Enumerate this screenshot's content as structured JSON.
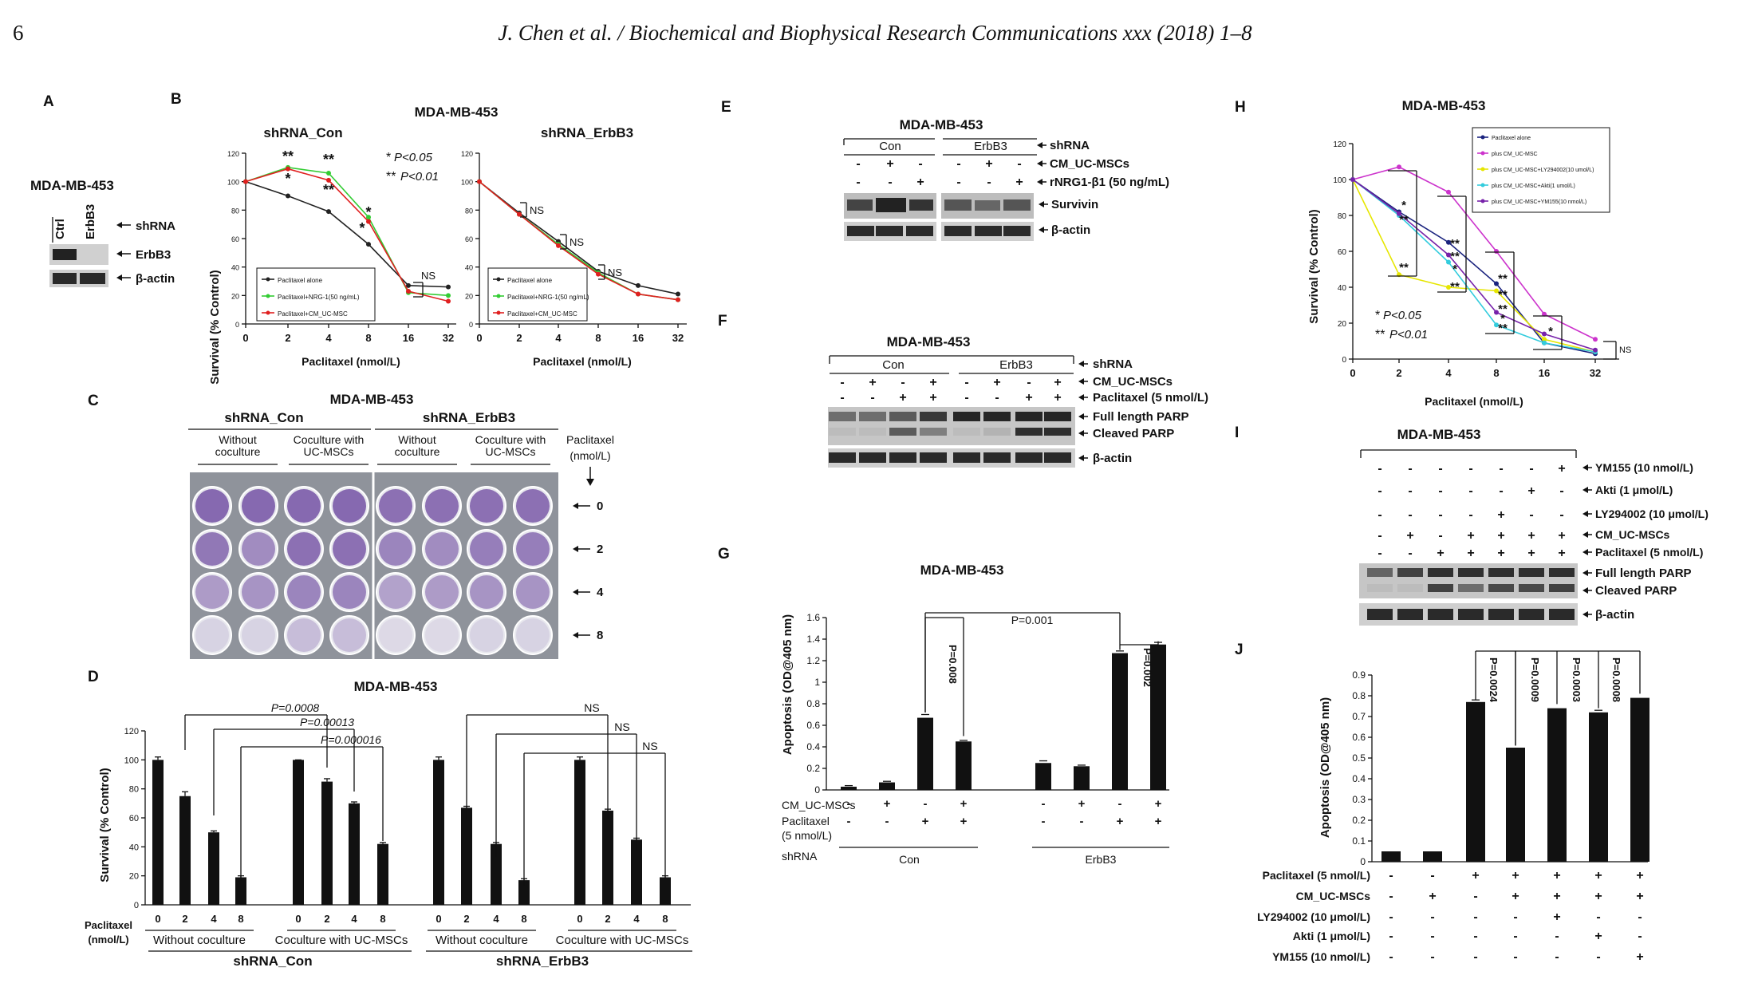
{
  "header": {
    "page_number": "6",
    "journal": "J. Chen et al. / Biochemical and Biophysical Research Communications xxx (2018) 1–8"
  },
  "colors": {
    "plate_bg": "#8f939b",
    "well": "#7b5ba8",
    "well_light": "#c9c5d6",
    "blot_dark": "#1f1f1f"
  },
  "panels": {
    "A": {
      "label": "A",
      "cell": "MDA-MB-453",
      "lanes": [
        "Ctrl",
        "ErbB3"
      ],
      "rows": [
        "shRNA",
        "ErbB3",
        "β-actin"
      ]
    },
    "B": {
      "label": "B",
      "cell": "MDA-MB-453",
      "ylabel": "Survival (% Control)",
      "xlabel": "Paclitaxel (nmol/L)",
      "sig1": "P<0.05",
      "sig2": "P<0.01",
      "titles": [
        "shRNA_Con",
        "shRNA_ErbB3"
      ],
      "legend": [
        "Paclitaxel alone",
        "Paclitaxel+NRG-1(50 ng/mL)",
        "Paclitaxel+CM_UC-MSC"
      ],
      "ns": "NS"
    },
    "C": {
      "label": "C",
      "cell": "MDA-MB-453",
      "groups": [
        "shRNA_Con",
        "shRNA_ErbB3"
      ],
      "sub": [
        "Without coculture",
        "Coculture with UC-MSCs",
        "Without coculture",
        "Coculture with UC-MSCs"
      ],
      "pac_label": "Paclitaxel (nmol/L)",
      "doses": [
        "0",
        "2",
        "4",
        "8"
      ]
    },
    "D": {
      "label": "D",
      "cell": "MDA-MB-453",
      "ylabel": "Survival (% Control)",
      "pac_label": "Paclitaxel (nmol/L)",
      "groups": [
        "Without coculture",
        "Coculture with UC-MSCs",
        "Without coculture",
        "Coculture with UC-MSCs"
      ],
      "shrna": [
        "shRNA_Con",
        "shRNA_ErbB3"
      ],
      "pvals": [
        "P=0.0008",
        "P=0.00013",
        "P=0.000016"
      ],
      "ns": "NS"
    },
    "E": {
      "label": "E",
      "cell": "MDA-MB-453",
      "groups": [
        "Con",
        "ErbB3"
      ],
      "rows": [
        "shRNA",
        "CM_UC-MSCs",
        "rNRG1-β1 (50 ng/mL)"
      ],
      "bands": [
        "Survivin",
        "β-actin"
      ],
      "cm": [
        "-",
        "+",
        "-",
        "-",
        "+",
        "-"
      ],
      "nrg": [
        "-",
        "-",
        "+",
        "-",
        "-",
        "+"
      ]
    },
    "F": {
      "label": "F",
      "cell": "MDA-MB-453",
      "groups": [
        "Con",
        "ErbB3"
      ],
      "rows": [
        "shRNA",
        "CM_UC-MSCs",
        "Paclitaxel (5  nmol/L)"
      ],
      "bands": [
        "Full length PARP",
        "Cleaved PARP",
        "β-actin"
      ],
      "cm": [
        "-",
        "+",
        "-",
        "+",
        "-",
        "+",
        "-",
        "+"
      ],
      "pac": [
        "-",
        "-",
        "+",
        "+",
        "-",
        "-",
        "+",
        "+"
      ]
    },
    "G": {
      "label": "G",
      "cell": "MDA-MB-453",
      "ylabel": "Apoptosis (OD@405 nm)",
      "row_labels": [
        "CM_UC-MSCs",
        "Paclitaxel",
        "(5 nmol/L)",
        "shRNA"
      ],
      "groups": [
        "Con",
        "ErbB3"
      ],
      "cm": [
        "-",
        "+",
        "-",
        "+",
        "-",
        "+",
        "-",
        "+"
      ],
      "pac": [
        "-",
        "-",
        "+",
        "+",
        "-",
        "-",
        "+",
        "+"
      ],
      "pvals": [
        "P=0.008",
        "P=0.001",
        "P=0.002"
      ]
    },
    "H": {
      "label": "H",
      "cell": "MDA-MB-453",
      "ylabel": "Survival (% Control)",
      "xlabel": "Paclitaxel (nmol/L)",
      "sig1": "P<0.05",
      "sig2": "P<0.01",
      "ns": "NS",
      "legend": [
        "Paclitaxel alone",
        "plus CM_UC-MSC",
        "plus CM_UC-MSC+LY294002(10 umol/L)",
        "plus CM_UC-MSC+Akti(1 umol/L)",
        "plus CM_UC-MSC+YM155(10 nmol/L)"
      ]
    },
    "I": {
      "label": "I",
      "cell": "MDA-MB-453",
      "rows": [
        "YM155 (10 nmol/L)",
        "Akti (1 μmol/L)",
        "LY294002 (10 μmol/L)",
        "CM_UC-MSCs",
        "Paclitaxel (5  nmol/L)"
      ],
      "signs": [
        [
          "-",
          "-",
          "-",
          "-",
          "-",
          "-",
          "+"
        ],
        [
          "-",
          "-",
          "-",
          "-",
          "-",
          "+",
          "-"
        ],
        [
          "-",
          "-",
          "-",
          "-",
          "+",
          "-",
          "-"
        ],
        [
          "-",
          "+",
          "-",
          "+",
          "+",
          "+",
          "+"
        ],
        [
          "-",
          "-",
          "+",
          "+",
          "+",
          "+",
          "+"
        ]
      ],
      "bands": [
        "Full length PARP",
        "Cleaved PARP",
        "β-actin"
      ]
    },
    "J": {
      "label": "J",
      "ylabel": "Apoptosis (OD@405 nm)",
      "rows": [
        "Paclitaxel (5  nmol/L)",
        "CM_UC-MSCs",
        "LY294002 (10 μmol/L)",
        "Akti (1 μmol/L)",
        "YM155 (10 nmol/L)"
      ],
      "signs": [
        [
          "-",
          "-",
          "+",
          "+",
          "+",
          "+",
          "+"
        ],
        [
          "-",
          "+",
          "-",
          "+",
          "+",
          "+",
          "+"
        ],
        [
          "-",
          "-",
          "-",
          "-",
          "+",
          "-",
          "-"
        ],
        [
          "-",
          "-",
          "-",
          "-",
          "-",
          "+",
          "-"
        ],
        [
          "-",
          "-",
          "-",
          "-",
          "-",
          "-",
          "+"
        ]
      ],
      "pvals": [
        "P=0.0024",
        "P=0.0009",
        "P=0.0003",
        "P=0.0008"
      ]
    }
  },
  "chart_data": [
    {
      "panel": "B-left",
      "type": "line",
      "title": "shRNA_Con",
      "x": [
        0,
        2,
        4,
        8,
        16,
        32
      ],
      "ylim": [
        0,
        120
      ],
      "xlabel": "Paclitaxel (nmol/L)",
      "ylabel": "Survival (% Control)",
      "series": [
        {
          "name": "Paclitaxel alone",
          "color": "#222222",
          "values": [
            100,
            90,
            79,
            56,
            27,
            26
          ]
        },
        {
          "name": "Paclitaxel+NRG-1(50 ng/mL)",
          "color": "#33cc33",
          "values": [
            100,
            110,
            106,
            75,
            22,
            20
          ]
        },
        {
          "name": "Paclitaxel+CM_UC-MSC",
          "color": "#e02020",
          "values": [
            100,
            109,
            101,
            72,
            23,
            16
          ]
        }
      ]
    },
    {
      "panel": "B-right",
      "type": "line",
      "title": "shRNA_ErbB3",
      "x": [
        0,
        2,
        4,
        8,
        16,
        32
      ],
      "ylim": [
        0,
        120
      ],
      "xlabel": "Paclitaxel (nmol/L)",
      "series": [
        {
          "name": "Paclitaxel alone",
          "color": "#222222",
          "values": [
            100,
            78,
            58,
            37,
            27,
            21
          ]
        },
        {
          "name": "Paclitaxel+NRG-1(50 ng/mL)",
          "color": "#33cc33",
          "values": [
            100,
            77,
            56,
            36,
            21,
            17
          ]
        },
        {
          "name": "Paclitaxel+CM_UC-MSC",
          "color": "#e02020",
          "values": [
            100,
            77,
            55,
            35,
            21,
            17
          ]
        }
      ]
    },
    {
      "panel": "D",
      "type": "bar",
      "ylim": [
        0,
        120
      ],
      "ylabel": "Survival (% Control)",
      "categories": [
        "0",
        "2",
        "4",
        "8",
        "0",
        "2",
        "4",
        "8",
        "0",
        "2",
        "4",
        "8",
        "0",
        "2",
        "4",
        "8"
      ],
      "values": [
        100,
        75,
        50,
        19,
        100,
        85,
        70,
        42,
        100,
        67,
        42,
        17,
        100,
        65,
        45,
        19
      ],
      "errors": [
        2,
        3,
        1,
        1,
        0,
        2,
        1,
        1,
        2,
        1,
        1,
        1,
        2,
        1,
        1,
        1
      ]
    },
    {
      "panel": "G",
      "type": "bar",
      "ylim": [
        0,
        1.6
      ],
      "ylabel": "Apoptosis (OD@405 nm)",
      "values": [
        0.03,
        0.07,
        0.67,
        0.45,
        0.25,
        0.22,
        1.27,
        1.35
      ],
      "errors": [
        0.01,
        0.01,
        0.03,
        0.01,
        0.02,
        0.01,
        0.02,
        0.02
      ]
    },
    {
      "panel": "H",
      "type": "line",
      "ylim": [
        0,
        120
      ],
      "x": [
        0,
        2,
        4,
        8,
        16,
        32
      ],
      "xlabel": "Paclitaxel (nmol/L)",
      "ylabel": "Survival (% Control)",
      "series": [
        {
          "name": "Paclitaxel alone",
          "color": "#1a237e",
          "values": [
            100,
            82,
            65,
            42,
            9,
            3
          ]
        },
        {
          "name": "plus CM_UC-MSC",
          "color": "#cc33cc",
          "values": [
            100,
            107,
            93,
            60,
            25,
            11
          ]
        },
        {
          "name": "plus CM_UC-MSC+LY294002(10 umol/L)",
          "color": "#e6e600",
          "values": [
            100,
            47,
            40,
            38,
            11,
            4
          ]
        },
        {
          "name": "plus CM_UC-MSC+Akti(1 umol/L)",
          "color": "#33ccdd",
          "values": [
            100,
            80,
            54,
            19,
            9,
            4
          ]
        },
        {
          "name": "plus CM_UC-MSC+YM155(10 nmol/L)",
          "color": "#7722aa",
          "values": [
            100,
            81,
            58,
            26,
            14,
            5
          ]
        }
      ]
    },
    {
      "panel": "J",
      "type": "bar",
      "ylim": [
        0,
        0.9
      ],
      "ylabel": "Apoptosis (OD@405 nm)",
      "values": [
        0.05,
        0.05,
        0.77,
        0.55,
        0.74,
        0.72,
        0.79
      ],
      "errors": [
        0,
        0,
        0.01,
        0,
        0,
        0.01,
        0
      ]
    }
  ]
}
